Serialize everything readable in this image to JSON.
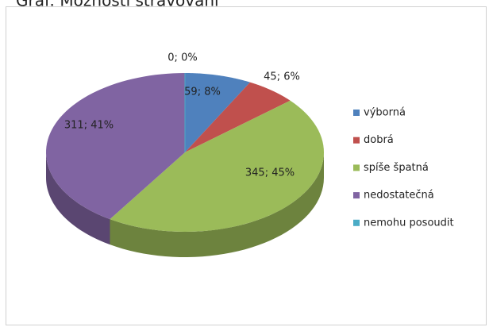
{
  "chart_data": {
    "type": "pie",
    "title": "Graf: Možnosti stravování",
    "categories": [
      "výborná",
      "dobrá",
      "spíše špatná",
      "nedostatečná",
      "nemohu posoudit"
    ],
    "values": [
      59,
      45,
      345,
      311,
      0
    ],
    "value_labels": [
      "59; 8%",
      "45; 6%",
      "345; 45%",
      "311; 41%",
      "0; 0%"
    ],
    "colors": [
      "#4f81bd",
      "#c0504d",
      "#9bbb59",
      "#8064a2",
      "#4bacc6"
    ],
    "legend": "right"
  }
}
